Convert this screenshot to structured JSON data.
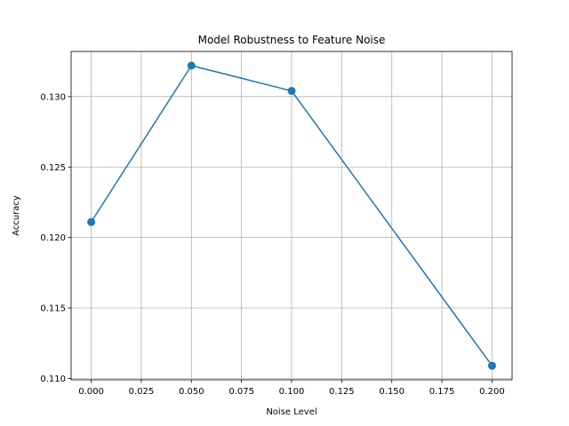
{
  "chart_data": {
    "type": "line",
    "title": "Model Robustness to Feature Noise",
    "xlabel": "Noise Level",
    "ylabel": "Accuracy",
    "x": [
      0.0,
      0.05,
      0.1,
      0.2
    ],
    "series": [
      {
        "values": [
          0.1211,
          0.1322,
          0.1304,
          0.1109
        ],
        "color": "#1f77b4",
        "marker": "circle"
      }
    ],
    "xlim": [
      -0.01,
      0.21
    ],
    "ylim": [
      0.1099,
      0.1332
    ],
    "xticks": [
      0.0,
      0.025,
      0.05,
      0.075,
      0.1,
      0.125,
      0.15,
      0.175,
      0.2
    ],
    "xtick_labels": [
      "0.000",
      "0.025",
      "0.050",
      "0.075",
      "0.100",
      "0.125",
      "0.150",
      "0.175",
      "0.200"
    ],
    "yticks": [
      0.11,
      0.115,
      0.12,
      0.125,
      0.13
    ],
    "ytick_labels": [
      "0.110",
      "0.115",
      "0.120",
      "0.125",
      "0.130"
    ],
    "grid": true,
    "grid_color": "#b0b0b0"
  }
}
